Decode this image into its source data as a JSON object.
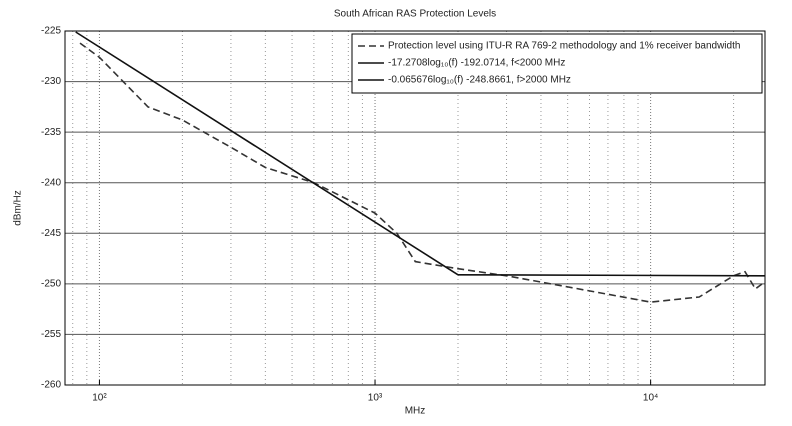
{
  "chart_data": {
    "type": "line",
    "title": "South African RAS Protection Levels",
    "xlabel": "MHz",
    "ylabel": "dBm/Hz",
    "xlog": true,
    "xlim": [
      75,
      26000
    ],
    "ylim": [
      -260,
      -225
    ],
    "xticks": [
      {
        "value": 100,
        "label": "10²"
      },
      {
        "value": 1000,
        "label": "10³"
      },
      {
        "value": 10000,
        "label": "10⁴"
      }
    ],
    "xminorticks": [
      80,
      90,
      200,
      300,
      400,
      500,
      600,
      700,
      800,
      900,
      2000,
      3000,
      4000,
      5000,
      6000,
      7000,
      8000,
      9000,
      20000
    ],
    "yticks": [
      -260,
      -255,
      -250,
      -245,
      -240,
      -235,
      -230,
      -225
    ],
    "grid": true,
    "legend": "upper right",
    "series": [
      {
        "name": "Protection level using ITU-R RA 769-2 methodology and 1% receiver bandwidth",
        "color": "#333333",
        "dash": true,
        "x": [
          85,
          100,
          150,
          200,
          300,
          400,
          600,
          1000,
          1200,
          1400,
          2000,
          3000,
          5000,
          10000,
          15000,
          20000,
          22000,
          24000,
          26000
        ],
        "values": [
          -226.2,
          -227.6,
          -232.5,
          -233.8,
          -236.5,
          -238.5,
          -240,
          -243,
          -245,
          -247.8,
          -248.5,
          -249.2,
          -250.3,
          -251.8,
          -251.3,
          -249.2,
          -248.8,
          -250.5,
          -249.8
        ]
      },
      {
        "name": "-17.2708log₁₀(f) -192.0714, f<2000 MHz",
        "color": "#111111",
        "dash": false,
        "x": [
          82,
          2000
        ],
        "values": [
          -225.1,
          -249.1
        ]
      },
      {
        "name": "-0.065676log₁₀(f) -248.8661, f>2000 MHz",
        "color": "#111111",
        "dash": false,
        "x": [
          2000,
          26000
        ],
        "values": [
          -249.1,
          -249.2
        ]
      }
    ]
  }
}
